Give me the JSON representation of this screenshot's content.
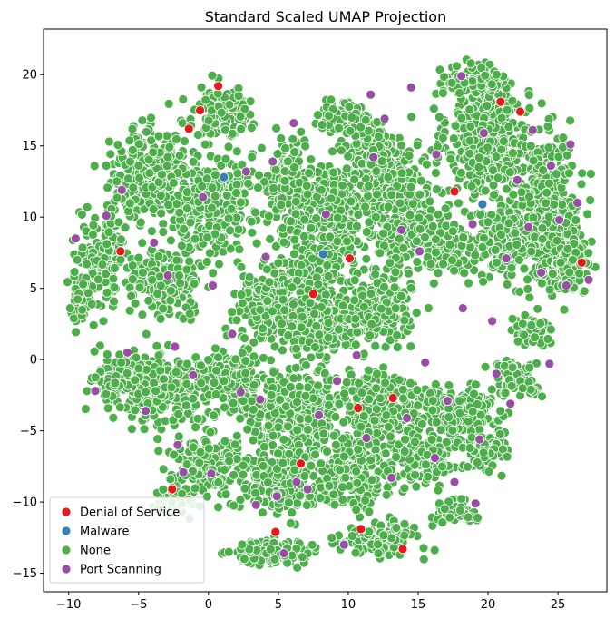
{
  "chart_data": {
    "type": "scatter",
    "title": "Standard Scaled UMAP Projection",
    "xlabel": "",
    "ylabel": "",
    "xlim": [
      -11.8,
      28.5
    ],
    "ylim": [
      -16.3,
      23.2
    ],
    "x_ticks": [
      -10,
      -5,
      0,
      5,
      10,
      15,
      20,
      25
    ],
    "y_ticks": [
      -15,
      -10,
      -5,
      0,
      5,
      10,
      15,
      20
    ],
    "x_tick_labels": [
      "−10",
      "−5",
      "0",
      "5",
      "10",
      "15",
      "20",
      "25"
    ],
    "y_tick_labels": [
      "−15",
      "−10",
      "−5",
      "0",
      "5",
      "10",
      "15",
      "20"
    ],
    "grid": false,
    "legend": {
      "position": "lower-left"
    },
    "series": [
      {
        "name": "Denial of Service",
        "color": "#e41a1c",
        "points": [
          [
            -1.4,
            16.2
          ],
          [
            -0.6,
            17.5
          ],
          [
            0.7,
            19.2
          ],
          [
            -6.3,
            7.6
          ],
          [
            -2.6,
            -9.1
          ],
          [
            4.8,
            -12.1
          ],
          [
            6.6,
            -7.3
          ],
          [
            7.5,
            4.6
          ],
          [
            10.1,
            7.1
          ],
          [
            10.7,
            -3.4
          ],
          [
            10.9,
            -11.9
          ],
          [
            13.2,
            -2.7
          ],
          [
            13.9,
            -13.3
          ],
          [
            17.6,
            11.8
          ],
          [
            20.9,
            18.1
          ],
          [
            22.3,
            17.4
          ],
          [
            26.7,
            6.8
          ]
        ]
      },
      {
        "name": "Malware",
        "color": "#377eb8",
        "points": [
          [
            1.1,
            12.8
          ],
          [
            8.2,
            7.4
          ],
          [
            19.6,
            10.9
          ]
        ]
      },
      {
        "name": "None",
        "color": "#4daf4a",
        "points": []
      },
      {
        "name": "Port Scanning",
        "color": "#984ea3",
        "points": [
          [
            -9.5,
            8.5
          ],
          [
            -8.1,
            -2.2
          ],
          [
            -7.3,
            10.1
          ],
          [
            -6.2,
            11.9
          ],
          [
            -5.8,
            0.5
          ],
          [
            -4.5,
            -3.6
          ],
          [
            -3.9,
            8.2
          ],
          [
            -2.9,
            5.9
          ],
          [
            -2.4,
            0.9
          ],
          [
            -1.8,
            -7.9
          ],
          [
            -1.1,
            -1.1
          ],
          [
            -0.4,
            11.4
          ],
          [
            0.3,
            5.2
          ],
          [
            0.2,
            -8.0
          ],
          [
            1.7,
            1.8
          ],
          [
            2.3,
            -2.3
          ],
          [
            2.7,
            13.2
          ],
          [
            3.4,
            -10.2
          ],
          [
            3.7,
            -2.8
          ],
          [
            4.1,
            7.2
          ],
          [
            4.9,
            -9.6
          ],
          [
            5.4,
            -13.6
          ],
          [
            6.1,
            16.6
          ],
          [
            6.3,
            -8.6
          ],
          [
            7.1,
            -9.1
          ],
          [
            7.9,
            -3.9
          ],
          [
            8.4,
            10.2
          ],
          [
            9.2,
            -1.5
          ],
          [
            9.7,
            -13.0
          ],
          [
            10.6,
            0.3
          ],
          [
            11.3,
            -5.5
          ],
          [
            11.6,
            18.6
          ],
          [
            12.6,
            16.9
          ],
          [
            13.1,
            -8.3
          ],
          [
            13.8,
            9.1
          ],
          [
            14.2,
            -4.1
          ],
          [
            14.5,
            19.1
          ],
          [
            15.1,
            7.6
          ],
          [
            15.5,
            -0.2
          ],
          [
            16.2,
            -6.9
          ],
          [
            16.3,
            14.4
          ],
          [
            17.1,
            -2.9
          ],
          [
            17.6,
            -8.6
          ],
          [
            18.1,
            19.9
          ],
          [
            18.2,
            3.6
          ],
          [
            18.9,
            9.5
          ],
          [
            19.4,
            -5.6
          ],
          [
            19.7,
            15.9
          ],
          [
            20.3,
            2.7
          ],
          [
            20.6,
            -1.0
          ],
          [
            21.3,
            7.1
          ],
          [
            21.6,
            -3.1
          ],
          [
            22.1,
            12.6
          ],
          [
            22.9,
            9.3
          ],
          [
            23.2,
            16.1
          ],
          [
            23.8,
            6.1
          ],
          [
            24.4,
            -0.3
          ],
          [
            24.5,
            13.6
          ],
          [
            25.1,
            9.8
          ],
          [
            25.6,
            5.2
          ],
          [
            25.9,
            15.1
          ],
          [
            26.4,
            11.0
          ],
          [
            27.2,
            5.6
          ],
          [
            19.1,
            -10.1
          ],
          [
            11.8,
            14.2
          ],
          [
            4.6,
            13.9
          ],
          [
            -2.2,
            -6.0
          ]
        ]
      }
    ]
  }
}
